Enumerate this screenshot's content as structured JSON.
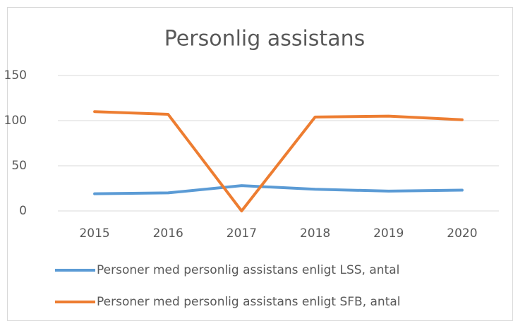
{
  "chart_data": {
    "type": "line",
    "title": "Personlig assistans",
    "categories": [
      "2015",
      "2016",
      "2017",
      "2018",
      "2019",
      "2020"
    ],
    "series": [
      {
        "name": "Personer med personlig assistans enligt LSS, antal",
        "color": "#5b9bd5",
        "values": [
          19,
          20,
          28,
          24,
          22,
          23
        ]
      },
      {
        "name": "Personer med personlig assistans enligt SFB, antal",
        "color": "#ed7d31",
        "values": [
          110,
          107,
          0,
          104,
          105,
          101
        ]
      }
    ],
    "ylim": [
      0,
      150
    ],
    "yticks": [
      0,
      50,
      100,
      150
    ],
    "grid": true,
    "legend": "bottom"
  }
}
